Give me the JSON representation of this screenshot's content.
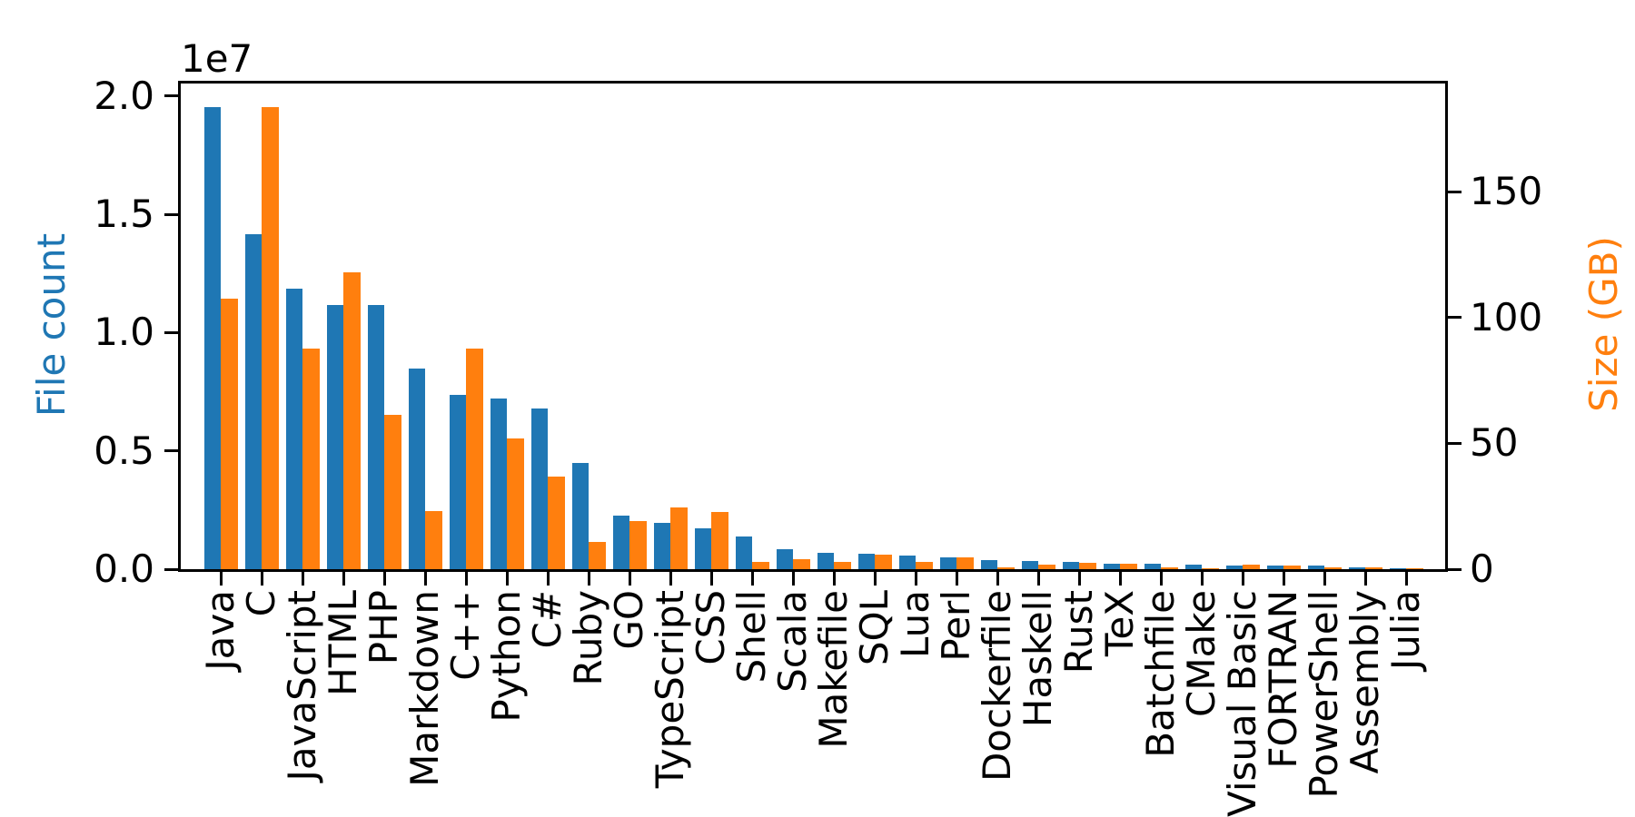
{
  "figure": {
    "background_color": "#ffffff",
    "title": "",
    "left_axis": {
      "label": "File count",
      "label_color": "#1f77b4",
      "offset_text": "1e7",
      "tick_labels": [
        "0.0",
        "0.5",
        "1.0",
        "1.5",
        "2.0"
      ],
      "tick_values": [
        0,
        5000000,
        10000000,
        15000000,
        20000000
      ],
      "tick_color": "#000000"
    },
    "right_axis": {
      "label": "Size (GB)",
      "label_color": "#ff7f0e",
      "tick_labels": [
        "0",
        "50",
        "100",
        "150"
      ],
      "tick_values": [
        0,
        50,
        100,
        150
      ],
      "tick_color": "#000000"
    }
  },
  "chart_data": {
    "type": "bar",
    "title": "",
    "xlabel": "",
    "grid": false,
    "legend": "none",
    "categories": [
      "Java",
      "C",
      "JavaScript",
      "HTML",
      "PHP",
      "Markdown",
      "C++",
      "Python",
      "C#",
      "Ruby",
      "GO",
      "TypeScript",
      "CSS",
      "Shell",
      "Scala",
      "Makefile",
      "SQL",
      "Lua",
      "Perl",
      "Dockerfile",
      "Haskell",
      "Rust",
      "TeX",
      "Batchfile",
      "CMake",
      "Visual Basic",
      "FORTRAN",
      "PowerShell",
      "Assembly",
      "Julia"
    ],
    "series": [
      {
        "name": "File count",
        "axis": "left",
        "color": "#1f77b4",
        "values": [
          19548190,
          14143113,
          11839883,
          11178557,
          11177610,
          8464626,
          7380520,
          7226626,
          6811652,
          4473331,
          2265436,
          1940406,
          1734406,
          1385648,
          835755,
          679430,
          656671,
          578554,
          497949,
          366505,
          340623,
          322431,
          251015,
          236945,
          175282,
          155652,
          142038,
          136846,
          82905,
          58317
        ]
      },
      {
        "name": "Size (GB)",
        "axis": "right",
        "color": "#ff7f0e",
        "values": [
          107.7,
          183.83,
          87.82,
          118.12,
          61.41,
          23.09,
          87.73,
          52.03,
          36.83,
          10.95,
          19.28,
          24.59,
          22.67,
          3.01,
          3.87,
          2.92,
          5.67,
          2.81,
          4.7,
          0.71,
          1.85,
          2.68,
          2.15,
          0.7,
          0.54,
          1.91,
          1.62,
          0.69,
          0.78,
          0.29
        ]
      }
    ],
    "left_ylim": [
      0,
      20525600
    ],
    "right_ylim": [
      0,
      193.02
    ]
  }
}
